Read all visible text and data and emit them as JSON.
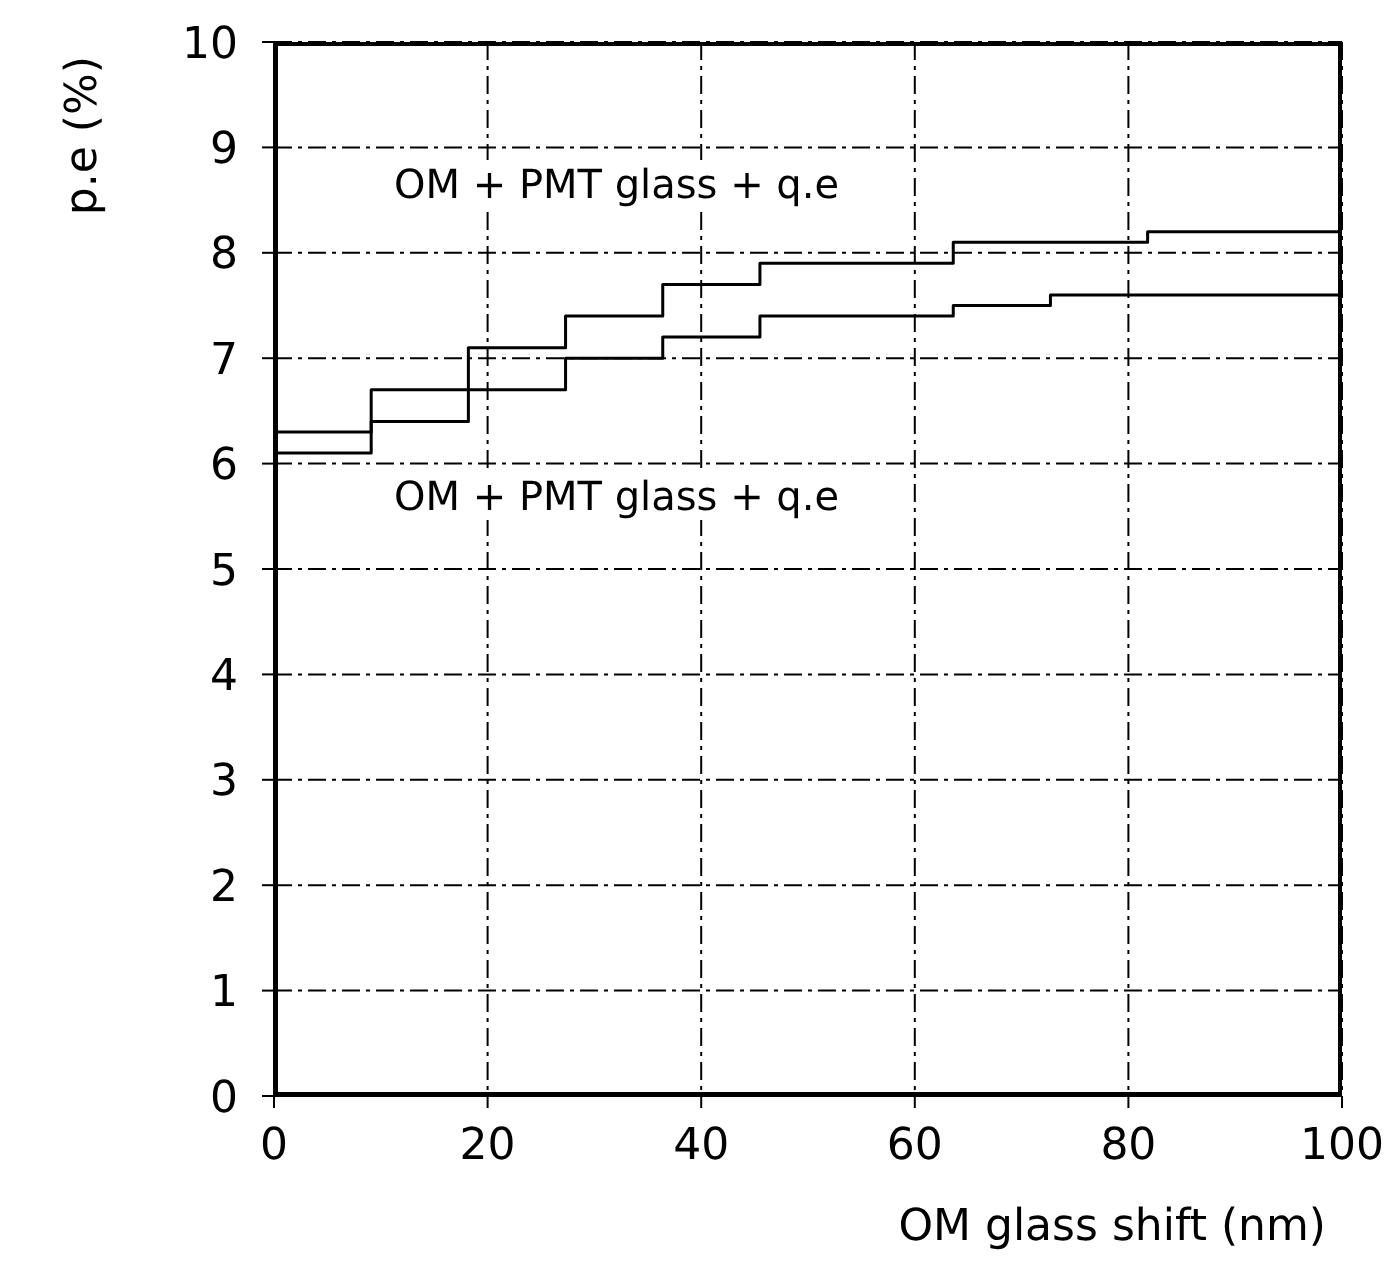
{
  "chart_data": {
    "type": "step",
    "xlabel": "OM glass shift (nm)",
    "ylabel": "p.e (%)",
    "xlim": [
      0,
      100
    ],
    "xticks": [
      0,
      20,
      40,
      60,
      80,
      100
    ],
    "ylim": [
      0,
      10
    ],
    "yticks": [
      0,
      1,
      2,
      3,
      4,
      5,
      6,
      7,
      8,
      9,
      10
    ],
    "grid": true,
    "legend": false,
    "line_style": "solid",
    "x": [
      0,
      9.1,
      18.2,
      27.3,
      36.4,
      45.5,
      54.5,
      63.6,
      72.7,
      81.8,
      90.9,
      100
    ],
    "series": [
      {
        "color": "#000000",
        "values": [
          6.3,
          6.7,
          7.1,
          7.4,
          7.7,
          7.9,
          7.9,
          8.1,
          8.1,
          8.2,
          8.2,
          8.2
        ]
      },
      {
        "color": "#000000",
        "values": [
          6.1,
          6.4,
          6.7,
          7.0,
          7.2,
          7.4,
          7.4,
          7.5,
          7.6,
          7.6,
          7.6,
          7.6
        ]
      }
    ],
    "annotations": [
      "OM + PMT glass + q.e",
      "OM + PMT glass + q.e"
    ]
  }
}
